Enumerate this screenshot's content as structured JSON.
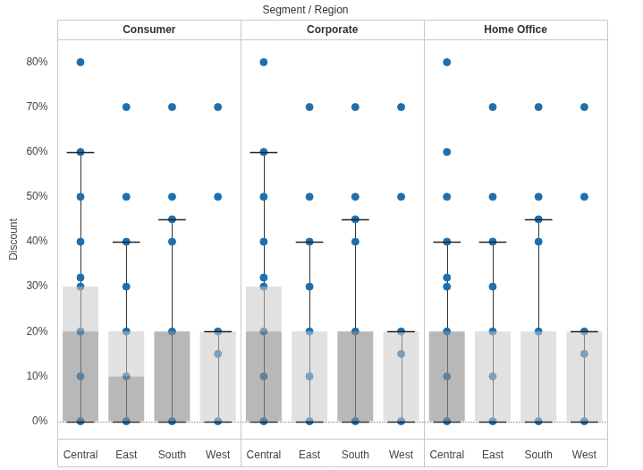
{
  "chart_data": {
    "type": "boxplot",
    "title": "Segment / Region",
    "y_label": "Discount",
    "categories": [
      "Central",
      "East",
      "South",
      "West"
    ],
    "series": [
      {
        "name": "Consumer",
        "color": "#1f6fae",
        "values": [
          [
            0,
            10,
            20,
            30,
            32,
            40,
            50,
            60,
            80
          ],
          [
            0,
            10,
            20,
            30,
            40,
            50,
            70
          ],
          [
            0,
            20,
            40,
            45,
            50,
            70
          ],
          [
            0,
            15,
            20,
            50,
            70
          ]
        ],
        "q1": [
          0,
          0,
          0,
          0
        ],
        "median": [
          20,
          10,
          20,
          0
        ],
        "q3": [
          30,
          20,
          20,
          20
        ],
        "whisker_low": [
          0,
          0,
          0,
          0
        ],
        "whisker_high": [
          60,
          40,
          45,
          20
        ]
      },
      {
        "name": "Corporate",
        "color": "#1f6fae",
        "values": [
          [
            0,
            10,
            20,
            30,
            32,
            40,
            50,
            60,
            80
          ],
          [
            0,
            10,
            20,
            30,
            40,
            50,
            70
          ],
          [
            0,
            20,
            40,
            45,
            50,
            70
          ],
          [
            0,
            15,
            20,
            50,
            70
          ]
        ],
        "q1": [
          0,
          0,
          0,
          0
        ],
        "median": [
          20,
          0,
          20,
          0
        ],
        "q3": [
          30,
          20,
          20,
          20
        ],
        "whisker_low": [
          0,
          0,
          0,
          0
        ],
        "whisker_high": [
          60,
          40,
          45,
          20
        ]
      },
      {
        "name": "Home Office",
        "color": "#1f6fae",
        "values": [
          [
            0,
            10,
            20,
            30,
            32,
            40,
            50,
            60,
            80
          ],
          [
            0,
            10,
            20,
            30,
            40,
            50,
            70
          ],
          [
            0,
            20,
            40,
            45,
            50,
            70
          ],
          [
            0,
            15,
            20,
            50,
            70
          ]
        ],
        "q1": [
          0,
          0,
          0,
          0
        ],
        "median": [
          20,
          0,
          0,
          0
        ],
        "q3": [
          20,
          20,
          20,
          20
        ],
        "whisker_low": [
          0,
          0,
          0,
          0
        ],
        "whisker_high": [
          40,
          40,
          45,
          20
        ]
      }
    ],
    "ylim": [
      -4,
      85
    ],
    "yticks": [
      {
        "value": 0,
        "label": "0%"
      },
      {
        "value": 10,
        "label": "10%"
      },
      {
        "value": 20,
        "label": "20%"
      },
      {
        "value": 30,
        "label": "30%"
      },
      {
        "value": 40,
        "label": "40%"
      },
      {
        "value": 50,
        "label": "50%"
      },
      {
        "value": 60,
        "label": "60%"
      },
      {
        "value": 70,
        "label": "70%"
      },
      {
        "value": 80,
        "label": "80%"
      }
    ],
    "grid": false
  }
}
